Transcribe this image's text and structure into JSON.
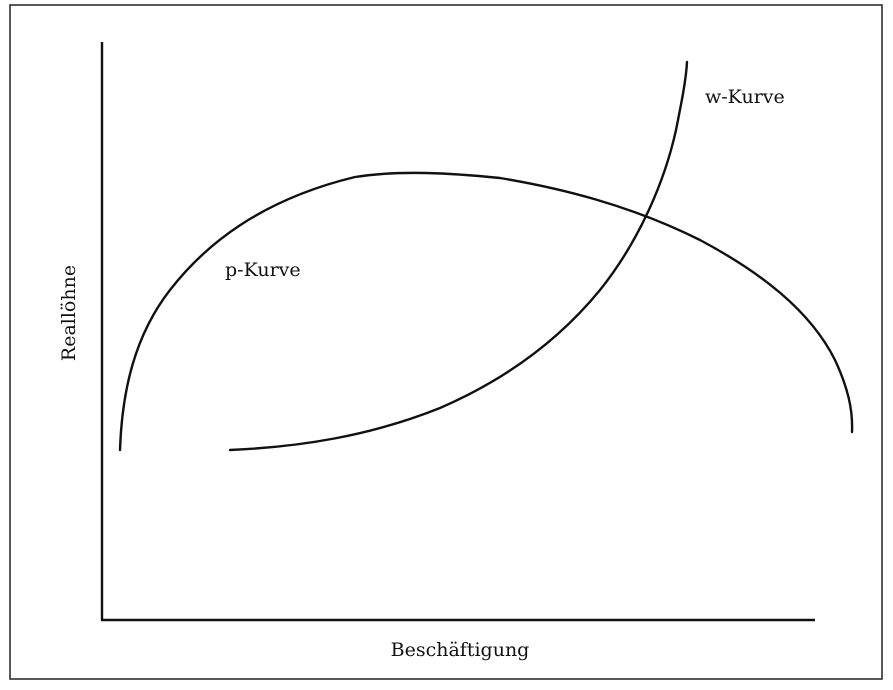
{
  "diagram": {
    "y_axis_label": "Reallöhne",
    "x_axis_label": "Beschäftigung",
    "curves": [
      {
        "label": "p-Kurve"
      },
      {
        "label": "w-Kurve"
      }
    ]
  }
}
